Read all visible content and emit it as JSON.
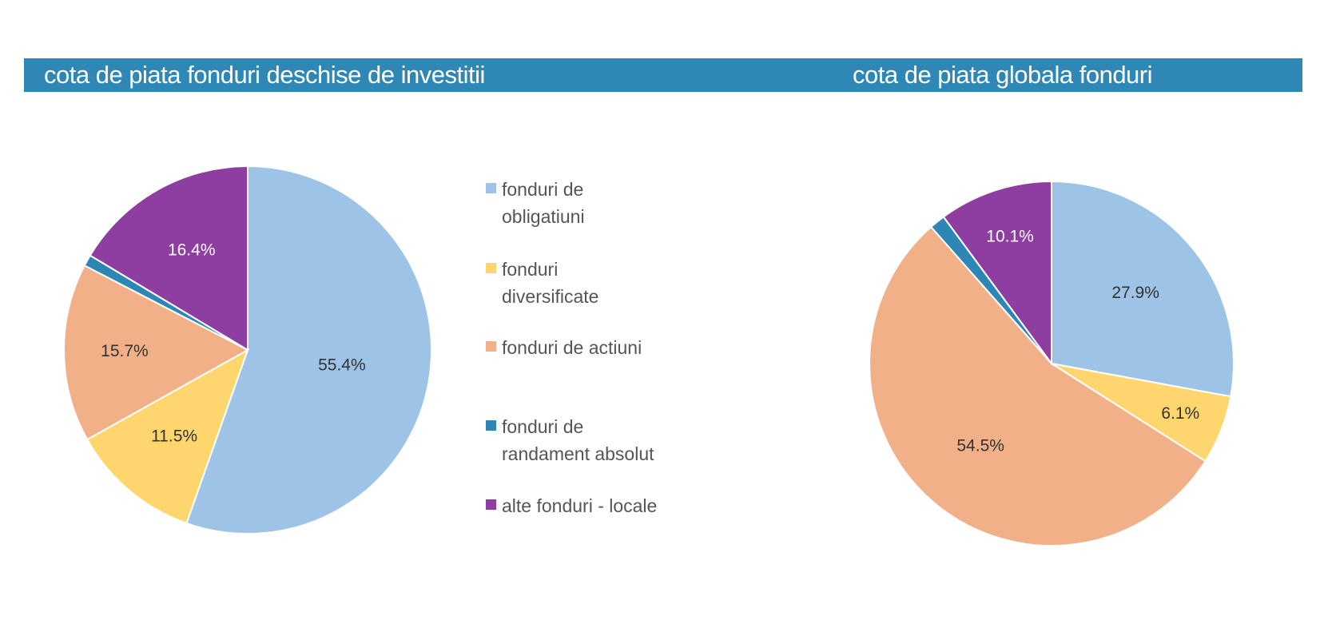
{
  "charts": {
    "left_title": "cota de piata fonduri deschise de investitii",
    "right_title": "cota de piata globala fonduri"
  },
  "legend": [
    {
      "line1": "fonduri de",
      "line2": "obligatiuni",
      "color": "#9dc3e6"
    },
    {
      "line1": "fonduri",
      "line2": "diversificate",
      "color": "#ffd56e"
    },
    {
      "line1": "fonduri de actiuni",
      "line2": "",
      "color": "#f2b088"
    },
    {
      "line1": "fonduri de",
      "line2": "randament absolut",
      "color": "#2e86b5"
    },
    {
      "line1": "alte fonduri - locale",
      "line2": "",
      "color": "#8e3da0"
    }
  ],
  "chart_data": [
    {
      "type": "pie",
      "title": "cota de piata fonduri deschise de investitii",
      "categories": [
        "fonduri de obligatiuni",
        "fonduri diversificate",
        "fonduri de actiuni",
        "fonduri de randament absolut",
        "alte fonduri - locale"
      ],
      "values": [
        55.4,
        11.5,
        15.7,
        1.0,
        16.4
      ],
      "labels": [
        "55.4%",
        "11.5%",
        "15.7%",
        "",
        "16.4%"
      ],
      "colors": [
        "#9dc3e6",
        "#ffd56e",
        "#f2b088",
        "#2e86b5",
        "#8e3da0"
      ],
      "label_colors": [
        "#333333",
        "#333333",
        "#333333",
        "#333333",
        "#ffffff"
      ],
      "legend_position": "right"
    },
    {
      "type": "pie",
      "title": "cota de piata globala fonduri",
      "categories": [
        "fonduri de obligatiuni",
        "fonduri diversificate",
        "fonduri de actiuni",
        "fonduri de randament absolut",
        "alte fonduri - locale"
      ],
      "values": [
        27.9,
        6.1,
        54.5,
        1.4,
        10.1
      ],
      "labels": [
        "27.9%",
        "6.1%",
        "54.5%",
        "",
        "10.1%"
      ],
      "colors": [
        "#9dc3e6",
        "#ffd56e",
        "#f2b088",
        "#2e86b5",
        "#8e3da0"
      ],
      "label_colors": [
        "#333333",
        "#333333",
        "#333333",
        "#333333",
        "#ffffff"
      ]
    }
  ]
}
